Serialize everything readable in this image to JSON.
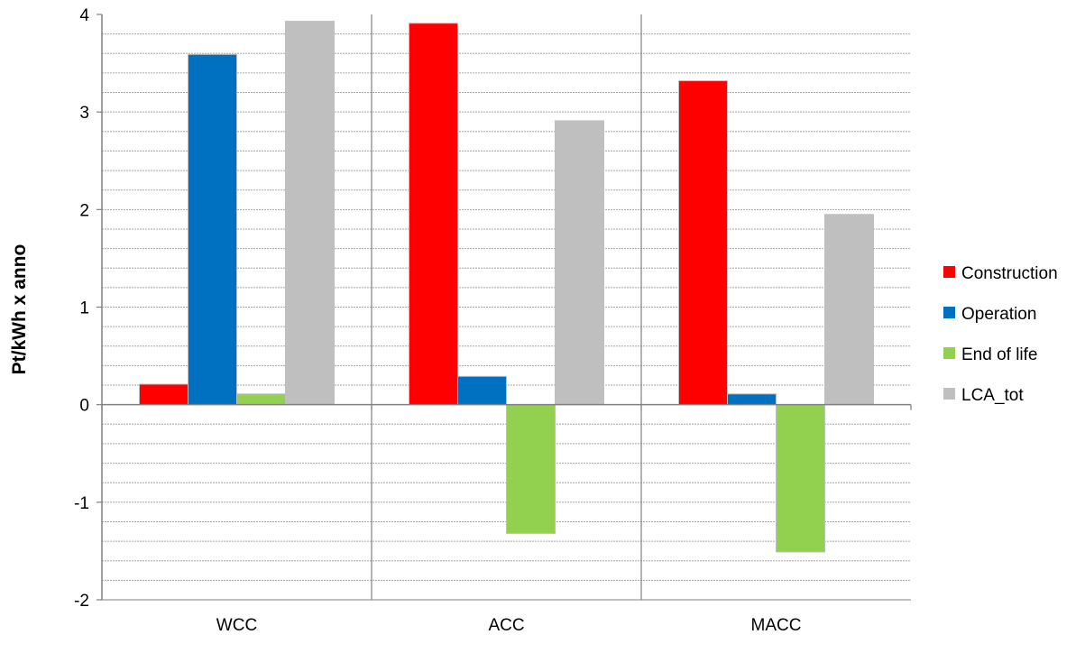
{
  "chart_data": {
    "type": "bar",
    "title": "",
    "xlabel": "",
    "ylabel": "Pt/kWh x anno",
    "categories": [
      "WCC",
      "ACC",
      "MACC"
    ],
    "series": [
      {
        "name": "Construction",
        "color": "#ff0000",
        "values": [
          0.21,
          3.91,
          3.32
        ]
      },
      {
        "name": "Operation",
        "color": "#0070c0",
        "values": [
          3.59,
          0.29,
          0.11
        ]
      },
      {
        "name": "End of life",
        "color": "#92d050",
        "values": [
          0.11,
          -1.32,
          -1.51
        ]
      },
      {
        "name": "LCA_tot",
        "color": "#bfbfbf",
        "values": [
          3.93,
          2.91,
          1.95
        ]
      }
    ],
    "ylim": [
      -2,
      4
    ],
    "yticks": [
      -2,
      -1,
      0,
      1,
      2,
      3,
      4
    ],
    "minor_step": 0.2,
    "grid": true,
    "legend_position": "right"
  }
}
